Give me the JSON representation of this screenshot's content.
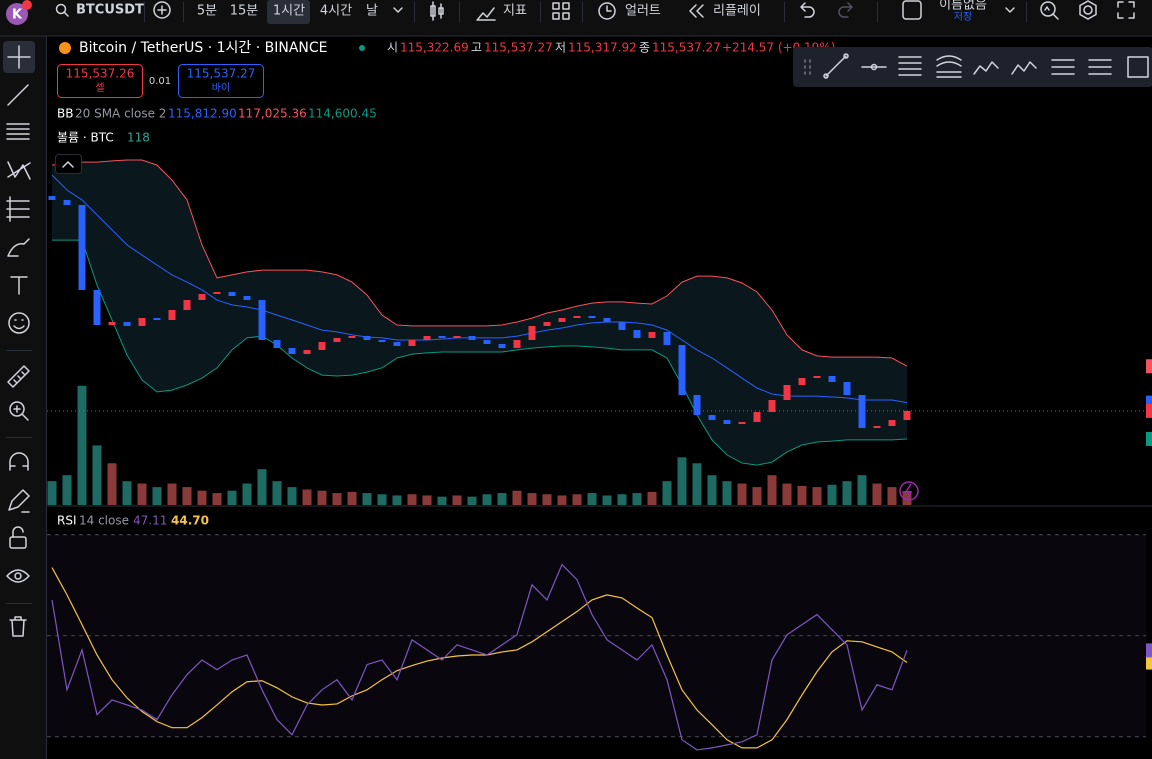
{
  "toolbar": {
    "avatar": "K",
    "symbol": "BTCUSDT",
    "intervals": [
      "5분",
      "15분",
      "1시간",
      "4시간",
      "날"
    ],
    "indicators": "지표",
    "alert": "얼러트",
    "replay": "리플레이",
    "layout_name": "이름없음",
    "save": "저장"
  },
  "legend": {
    "title": "Bitcoin / TetherUS · 1시간 · BINANCE",
    "ohlc": [
      {
        "label": "시",
        "value": "115,322.69"
      },
      {
        "label": "고",
        "value": "115,537.27"
      },
      {
        "label": "저",
        "value": "115,317.92"
      },
      {
        "label": "종",
        "value": "115,537.27"
      }
    ],
    "change": "+214.57 (+0.19%)"
  },
  "trade": {
    "sell_price": "115,537.26",
    "sell": "셀",
    "quantity": "0.01",
    "buy_price": "115,537.27",
    "buy": "바이"
  },
  "indicators": {
    "bb": {
      "name": "BB",
      "params": "20 SMA close 2",
      "values": [
        "115,812.90",
        "117,025.36",
        "114,600.45"
      ]
    },
    "volume": {
      "name": "볼륨 · BTC",
      "value": "118"
    },
    "rsi": {
      "name": "RSI",
      "params": "14 close",
      "values": [
        "47.11",
        "44.70"
      ]
    }
  },
  "chart_data": [
    {
      "type": "candlestick",
      "ylim": [
        112400,
        127900
      ],
      "up_color": "#f23645",
      "down_color": "#2962ff",
      "last_price": 115537.27,
      "open": [
        122700,
        122567,
        122400,
        119567,
        118400,
        118500,
        118367,
        118633,
        118567,
        118900,
        119233,
        119433,
        119500,
        119367,
        119233,
        117900,
        117633,
        117433,
        117567,
        117833,
        117967,
        118033,
        117900,
        117833,
        117700,
        117900,
        118033,
        117967,
        118033,
        117900,
        117767,
        117633,
        117900,
        118367,
        118500,
        118633,
        118700,
        118633,
        118500,
        118233,
        117967,
        118167,
        117733,
        116067,
        115400,
        115233,
        115100,
        115167,
        115500,
        115900,
        116400,
        116633,
        116700,
        116500,
        116067,
        114967,
        115033,
        115233
      ],
      "close": [
        122567,
        122400,
        119567,
        118400,
        118500,
        118367,
        118633,
        118567,
        118900,
        119233,
        119433,
        119500,
        119367,
        119233,
        117900,
        117633,
        117433,
        117567,
        117833,
        117967,
        118033,
        117900,
        117833,
        117700,
        117900,
        118033,
        117967,
        118033,
        117900,
        117767,
        117633,
        117900,
        118367,
        118500,
        118633,
        118700,
        118633,
        118500,
        118233,
        117967,
        118167,
        117733,
        116067,
        115400,
        115233,
        115100,
        115167,
        115500,
        115900,
        116400,
        116633,
        116700,
        116500,
        116067,
        114967,
        115033,
        115233,
        115537.27
      ],
      "bands": {
        "upper_color": "#f7525f",
        "basis_color": "#2962ff",
        "lower_color": "#089981",
        "upper": [
          123730,
          123800,
          123830,
          123830,
          123870,
          123900,
          123900,
          123730,
          123230,
          122570,
          121070,
          119970,
          120070,
          120170,
          120230,
          120230,
          120230,
          120230,
          120170,
          120070,
          119830,
          119400,
          118730,
          118400,
          118370,
          118370,
          118370,
          118370,
          118370,
          118370,
          118400,
          118500,
          118630,
          118800,
          118900,
          119030,
          119130,
          119170,
          119170,
          119130,
          119100,
          119370,
          119830,
          120030,
          120030,
          119970,
          119800,
          119500,
          118900,
          118070,
          117570,
          117370,
          117330,
          117330,
          117330,
          117330,
          117300,
          117025.36
        ],
        "basis": [
          123400,
          122900,
          122570,
          122070,
          121570,
          121070,
          120730,
          120400,
          120070,
          119830,
          119570,
          119230,
          119070,
          119000,
          118900,
          118730,
          118570,
          118400,
          118230,
          118170,
          118070,
          118000,
          117970,
          117900,
          117900,
          117900,
          117930,
          117970,
          117970,
          117970,
          117970,
          118030,
          118130,
          118230,
          118300,
          118400,
          118470,
          118500,
          118500,
          118470,
          118400,
          118230,
          117900,
          117570,
          117300,
          116970,
          116630,
          116300,
          116100,
          116030,
          116030,
          116030,
          116000,
          115970,
          115900,
          115900,
          115900,
          115812.9
        ],
        "lower": [
          121230,
          121230,
          121230,
          119730,
          118570,
          117400,
          116570,
          116170,
          116230,
          116400,
          116630,
          116970,
          117570,
          117970,
          118030,
          117730,
          117300,
          116970,
          116730,
          116700,
          116730,
          116830,
          116970,
          117300,
          117430,
          117470,
          117500,
          117500,
          117500,
          117500,
          117500,
          117570,
          117630,
          117670,
          117700,
          117700,
          117670,
          117630,
          117570,
          117570,
          117570,
          117300,
          116400,
          115400,
          114570,
          114070,
          113800,
          113730,
          113830,
          114170,
          114400,
          114500,
          114530,
          114570,
          114570,
          114570,
          114570,
          114600.45
        ]
      },
      "volume_lim": [
        0,
        3900
      ],
      "volume_up_color": "#8b3a3a",
      "volume_down_color": "#1e6b63",
      "volume": [
        200,
        250,
        1000,
        500,
        350,
        200,
        180,
        150,
        180,
        150,
        120,
        100,
        120,
        180,
        300,
        200,
        150,
        130,
        120,
        100,
        110,
        100,
        90,
        80,
        90,
        80,
        70,
        80,
        70,
        90,
        100,
        120,
        100,
        90,
        80,
        90,
        100,
        80,
        90,
        100,
        110,
        200,
        400,
        350,
        250,
        200,
        180,
        150,
        250,
        180,
        160,
        150,
        170,
        200,
        250,
        180,
        150,
        118
      ]
    },
    {
      "type": "line",
      "ylim": [
        25.6,
        75.5
      ],
      "levels": [
        70,
        50,
        30
      ],
      "series": [
        {
          "color": "#7e57c2",
          "values": [
            57.1,
            39.3,
            47.2,
            34.4,
            37.3,
            36.3,
            35.3,
            33.4,
            38.3,
            42.3,
            45.2,
            43.3,
            45.2,
            46.2,
            39.3,
            33.4,
            30.4,
            36.3,
            39.3,
            41.3,
            37.3,
            44.3,
            45.2,
            41.3,
            49.2,
            47.2,
            45.2,
            48.2,
            47.2,
            46.2,
            48.2,
            50.2,
            60.1,
            57.1,
            64.1,
            61.1,
            54.2,
            49.2,
            47.2,
            45.2,
            48.2,
            41.3,
            29.4,
            27.4,
            27.8,
            28.4,
            29.0,
            30.4,
            45.2,
            50.2,
            52.2,
            54.2,
            51.2,
            48.2,
            35.3,
            40.3,
            39.3,
            47.11
          ]
        },
        {
          "color": "#f5c542",
          "values": [
            63.5,
            58.1,
            52.2,
            46.2,
            41.3,
            37.7,
            35.0,
            33.0,
            31.8,
            31.8,
            33.8,
            36.3,
            38.9,
            40.9,
            41.1,
            39.7,
            37.9,
            36.7,
            36.3,
            36.5,
            38.1,
            39.3,
            41.3,
            43.1,
            44.1,
            45.0,
            45.6,
            46.0,
            46.2,
            46.2,
            46.8,
            47.2,
            48.8,
            50.8,
            52.8,
            54.8,
            57.1,
            58.1,
            57.5,
            55.5,
            53.6,
            46.2,
            39.3,
            35.3,
            32.4,
            29.4,
            27.8,
            27.8,
            29.4,
            33.4,
            38.3,
            42.9,
            46.8,
            49.0,
            48.8,
            47.8,
            46.8,
            44.7
          ]
        }
      ]
    }
  ]
}
